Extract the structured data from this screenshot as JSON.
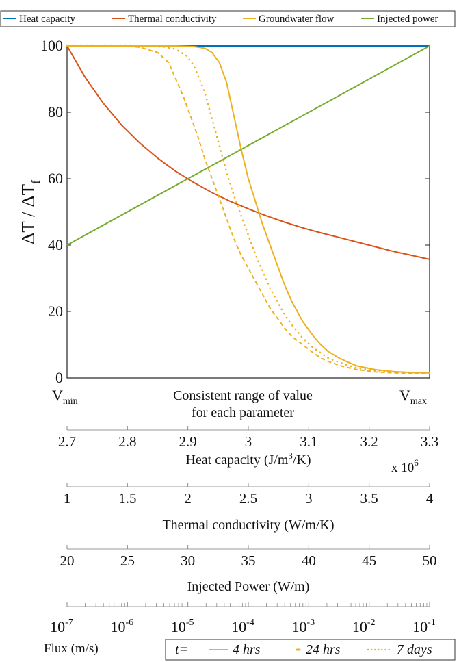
{
  "chart_data": {
    "type": "line",
    "ylabel_main": "ΔT / ΔT",
    "ylabel_sub": "f",
    "ylim": [
      0,
      100
    ],
    "yticks": [
      "0",
      "20",
      "40",
      "60",
      "80",
      "100"
    ],
    "x_range_label": [
      "Consistent range of value",
      "for each parameter"
    ],
    "x_min_label": {
      "main": "V",
      "sub": "min"
    },
    "x_max_label": {
      "main": "V",
      "sub": "max"
    },
    "legend": {
      "heat": "Heat capacity",
      "thermal": "Thermal conductivity",
      "groundwater": "Groundwater flow",
      "power": "Injected power"
    },
    "colors": {
      "heat": "#0072BD",
      "thermal": "#D95319",
      "groundwater": "#EDB120",
      "power": "#77AC30"
    },
    "series": [
      {
        "name": "Heat capacity",
        "key": "heat",
        "style": "solid",
        "x": [
          0,
          1
        ],
        "y": [
          100,
          100
        ]
      },
      {
        "name": "Thermal conductivity",
        "key": "thermal",
        "style": "solid",
        "x": [
          0,
          0.05,
          0.1,
          0.15,
          0.2,
          0.25,
          0.3,
          0.35,
          0.4,
          0.45,
          0.5,
          0.55,
          0.6,
          0.65,
          0.7,
          0.75,
          0.8,
          0.85,
          0.9,
          0.95,
          1.0
        ],
        "y": [
          100,
          90.5,
          82.7,
          76.2,
          70.8,
          66.2,
          62.2,
          58.8,
          55.8,
          53.2,
          50.9,
          48.8,
          46.9,
          45.2,
          43.7,
          42.3,
          40.9,
          39.5,
          38.1,
          36.9,
          35.7
        ]
      },
      {
        "name": "Injected power",
        "key": "power",
        "style": "solid",
        "x": [
          0,
          1
        ],
        "y": [
          40,
          100
        ]
      },
      {
        "name": "4 hrs",
        "key": "groundwater",
        "style": "solid",
        "x": [
          0,
          0.2,
          0.3,
          0.35,
          0.38,
          0.4,
          0.42,
          0.44,
          0.46,
          0.48,
          0.5,
          0.52,
          0.54,
          0.56,
          0.58,
          0.6,
          0.62,
          0.65,
          0.68,
          0.7,
          0.72,
          0.75,
          0.78,
          0.8,
          0.85,
          0.9,
          0.95,
          1.0
        ],
        "y": [
          100,
          100,
          100,
          99.8,
          99.3,
          98,
          95,
          89,
          79,
          69,
          60,
          53,
          46,
          40,
          34,
          28,
          23,
          17,
          12.5,
          10,
          8,
          6,
          4.5,
          3.6,
          2.5,
          1.9,
          1.6,
          1.5
        ]
      },
      {
        "name": "24 hrs",
        "key": "groundwater",
        "style": "dotted",
        "x": [
          0,
          0.2,
          0.27,
          0.3,
          0.33,
          0.35,
          0.38,
          0.4,
          0.42,
          0.44,
          0.46,
          0.48,
          0.5,
          0.52,
          0.54,
          0.56,
          0.58,
          0.6,
          0.62,
          0.65,
          0.68,
          0.7,
          0.72,
          0.75,
          0.78,
          0.8,
          0.85,
          0.9,
          0.95,
          1.0
        ],
        "y": [
          100,
          100,
          99.7,
          99,
          97,
          94,
          86,
          78,
          70,
          62,
          55,
          49,
          43,
          37,
          32,
          27,
          23,
          19,
          16,
          12,
          9,
          7.5,
          6,
          4.7,
          3.6,
          3,
          2.2,
          1.8,
          1.6,
          1.5
        ]
      },
      {
        "name": "7 days",
        "key": "groundwater",
        "style": "dashed",
        "x": [
          0,
          0.15,
          0.2,
          0.25,
          0.28,
          0.3,
          0.32,
          0.34,
          0.36,
          0.38,
          0.4,
          0.42,
          0.44,
          0.46,
          0.48,
          0.5,
          0.52,
          0.54,
          0.56,
          0.58,
          0.6,
          0.62,
          0.65,
          0.68,
          0.7,
          0.72,
          0.75,
          0.78,
          0.8,
          0.85,
          0.9,
          0.95,
          1.0
        ],
        "y": [
          100,
          100,
          99.6,
          98,
          95,
          90,
          85,
          79,
          73,
          66,
          60,
          54,
          48,
          42,
          37,
          33,
          29,
          25,
          21,
          18,
          15,
          12.5,
          10,
          7.5,
          6,
          5,
          3.8,
          3,
          2.5,
          1.8,
          1.5,
          1.3,
          1.3
        ]
      }
    ],
    "axes": [
      {
        "key": "heat",
        "label": "Heat capacity (J/m³/K)",
        "label_main": "Heat capacity (J/m",
        "label_sup": "3",
        "label_tail": "/K)",
        "ticks": [
          "2.7",
          "2.8",
          "2.9",
          "3",
          "3.1",
          "3.2",
          "3.3"
        ],
        "multiplier_main": "x 10",
        "multiplier_sup": "6"
      },
      {
        "key": "thermal",
        "label": "Thermal conductivity (W/m/K)",
        "ticks": [
          "1",
          "1.5",
          "2",
          "2.5",
          "3",
          "3.5",
          "4"
        ]
      },
      {
        "key": "power",
        "label": "Injected Power (W/m)",
        "ticks": [
          "20",
          "25",
          "30",
          "35",
          "40",
          "45",
          "50"
        ]
      },
      {
        "key": "flux",
        "label": "Flux (m/s)",
        "log": true,
        "tick_exponents": [
          "-7",
          "-6",
          "-5",
          "-4",
          "-3",
          "-2",
          "-1"
        ],
        "tick_base": "10"
      }
    ],
    "time_legend": {
      "prefix": "t=",
      "items": [
        "4 hrs",
        "24 hrs",
        "7 days"
      ]
    }
  }
}
